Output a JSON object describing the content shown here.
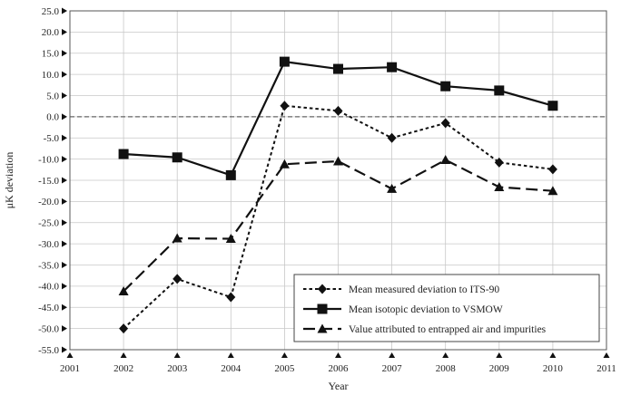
{
  "chart_data": {
    "type": "line",
    "title": "",
    "xlabel": "Year",
    "ylabel": "μK deviation",
    "xlim": [
      2001,
      2011
    ],
    "ylim": [
      -55,
      25
    ],
    "x_ticks": [
      "2001",
      "2002",
      "2003",
      "2004",
      "2005",
      "2006",
      "2007",
      "2008",
      "2009",
      "2010",
      "2011"
    ],
    "y_ticks": [
      "25.0",
      "20.0",
      "15.0",
      "10.0",
      "5.0",
      "0.0",
      "-5.0",
      "-10.0",
      "-15.0",
      "-20.0",
      "-25.0",
      "-30.0",
      "-35.0",
      "-40.0",
      "-45.0",
      "-50.0",
      "-55.0"
    ],
    "grid": true,
    "zero_line": "dashed",
    "legend_position": "bottom-right",
    "series": [
      {
        "name": "Mean measured deviation to ITS-90",
        "marker": "diamond",
        "line_style": "dotted",
        "x": [
          2002,
          2003,
          2004,
          2005,
          2006,
          2007,
          2008,
          2009,
          2010
        ],
        "y": [
          -50,
          -38.3,
          -42.6,
          2.6,
          1.4,
          -5.0,
          -1.5,
          -10.8,
          -12.4
        ]
      },
      {
        "name": "Mean isotopic deviation to VSMOW",
        "marker": "square",
        "line_style": "solid",
        "x": [
          2002,
          2003,
          2004,
          2005,
          2006,
          2007,
          2008,
          2009,
          2010
        ],
        "y": [
          -8.8,
          -9.6,
          -13.8,
          13.0,
          11.3,
          11.7,
          7.2,
          6.2,
          2.6
        ]
      },
      {
        "name": "Value attributed to entrapped air and impurities",
        "marker": "triangle",
        "line_style": "dashed",
        "x": [
          2002,
          2003,
          2004,
          2005,
          2006,
          2007,
          2008,
          2009,
          2010
        ],
        "y": [
          -41.2,
          -28.7,
          -28.8,
          -11.2,
          -10.5,
          -17.0,
          -10.2,
          -16.6,
          -17.5
        ]
      }
    ]
  }
}
